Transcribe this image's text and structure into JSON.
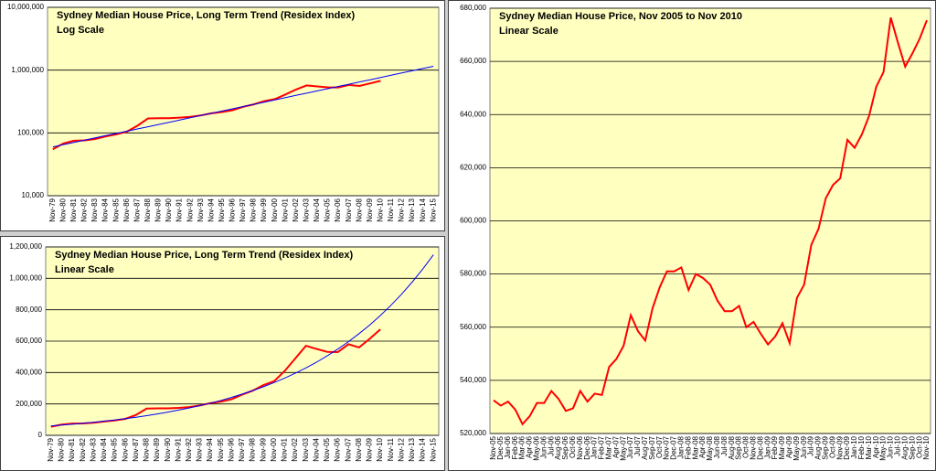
{
  "chart_data": [
    {
      "type": "line",
      "title": "Sydney Median House Price, Long Term Trend (Residex Index)",
      "subtitle": "Log Scale",
      "log_scale": true,
      "grid": true,
      "categories": [
        "Nov-79",
        "Nov-80",
        "Nov-81",
        "Nov-82",
        "Nov-83",
        "Nov-84",
        "Nov-85",
        "Nov-86",
        "Nov-87",
        "Nov-88",
        "Nov-89",
        "Nov-90",
        "Nov-91",
        "Nov-92",
        "Nov-93",
        "Nov-94",
        "Nov-95",
        "Nov-96",
        "Nov-97",
        "Nov-98",
        "Nov-99",
        "Nov-00",
        "Nov-01",
        "Nov-02",
        "Nov-03",
        "Nov-04",
        "Nov-05",
        "Nov-06",
        "Nov-07",
        "Nov-08",
        "Nov-09",
        "Nov-10",
        "Nov-11",
        "Nov-12",
        "Nov-13",
        "Nov-14",
        "Nov-15"
      ],
      "series": [
        {
          "color": "#ff0000",
          "values": [
            55000,
            68000,
            75000,
            76000,
            80000,
            88000,
            95000,
            105000,
            130000,
            170000,
            172000,
            172000,
            175000,
            180000,
            190000,
            205000,
            215000,
            230000,
            260000,
            285000,
            320000,
            345000,
            410000,
            490000,
            570000,
            550000,
            532000,
            530000,
            580000,
            560000,
            615000,
            675000,
            null,
            null,
            null,
            null,
            null
          ]
        },
        {
          "color": "#0000ff",
          "values": [
            60000,
            65100,
            70700,
            76700,
            83300,
            90400,
            98100,
            106500,
            115600,
            125500,
            136200,
            147900,
            160500,
            174200,
            189100,
            205300,
            222800,
            241900,
            262600,
            285000,
            309400,
            335900,
            364600,
            395800,
            429600,
            466300,
            506200,
            549500,
            596500,
            647500,
            702800,
            762900,
            828200,
            899000,
            975900,
            1059400,
            1150000
          ]
        }
      ],
      "ylim": [
        10000,
        10000000
      ],
      "yticks": [
        {
          "value": 10000,
          "label": "10,000"
        },
        {
          "value": 100000,
          "label": "100,000"
        },
        {
          "value": 1000000,
          "label": "1,000,000"
        },
        {
          "value": 10000000,
          "label": "10,000,000"
        }
      ]
    },
    {
      "type": "line",
      "title": "Sydney Median House Price, Long Term Trend (Residex Index)",
      "subtitle": "Linear Scale",
      "log_scale": false,
      "grid": true,
      "categories": [
        "Nov-79",
        "Nov-80",
        "Nov-81",
        "Nov-82",
        "Nov-83",
        "Nov-84",
        "Nov-85",
        "Nov-86",
        "Nov-87",
        "Nov-88",
        "Nov-89",
        "Nov-90",
        "Nov-91",
        "Nov-92",
        "Nov-93",
        "Nov-94",
        "Nov-95",
        "Nov-96",
        "Nov-97",
        "Nov-98",
        "Nov-99",
        "Nov-00",
        "Nov-01",
        "Nov-02",
        "Nov-03",
        "Nov-04",
        "Nov-05",
        "Nov-06",
        "Nov-07",
        "Nov-08",
        "Nov-09",
        "Nov-10",
        "Nov-11",
        "Nov-12",
        "Nov-13",
        "Nov-14",
        "Nov-15"
      ],
      "series": [
        {
          "color": "#ff0000",
          "values": [
            55000,
            68000,
            75000,
            76000,
            80000,
            88000,
            95000,
            105000,
            130000,
            170000,
            172000,
            172000,
            175000,
            180000,
            190000,
            205000,
            215000,
            230000,
            260000,
            285000,
            320000,
            345000,
            410000,
            490000,
            570000,
            550000,
            532000,
            530000,
            580000,
            560000,
            615000,
            675000,
            null,
            null,
            null,
            null,
            null
          ]
        },
        {
          "color": "#0000ff",
          "values": [
            60000,
            65100,
            70700,
            76700,
            83300,
            90400,
            98100,
            106500,
            115600,
            125500,
            136200,
            147900,
            160500,
            174200,
            189100,
            205300,
            222800,
            241900,
            262600,
            285000,
            309400,
            335900,
            364600,
            395800,
            429600,
            466300,
            506200,
            549500,
            596500,
            647500,
            702800,
            762900,
            828200,
            899000,
            975900,
            1059400,
            1150000
          ]
        }
      ],
      "ylim": [
        0,
        1200000
      ],
      "yticks": [
        0,
        {
          "value": 200000,
          "label": "200,000"
        },
        {
          "value": 400000,
          "label": "400,000"
        },
        {
          "value": 600000,
          "label": "600,000"
        },
        {
          "value": 800000,
          "label": "800,000"
        },
        {
          "value": 1000000,
          "label": "1,000,000"
        },
        {
          "value": 1200000,
          "label": "1,200,000"
        }
      ]
    },
    {
      "type": "line",
      "title": "Sydney Median House Price, Nov 2005 to Nov 2010",
      "subtitle": "Linear Scale",
      "log_scale": false,
      "grid": true,
      "categories": [
        "Nov-05",
        "Dec-05",
        "Jan-06",
        "Feb-06",
        "Mar-06",
        "Apr-06",
        "May-06",
        "Jun-06",
        "Jul-06",
        "Aug-06",
        "Sep-06",
        "Oct-06",
        "Nov-06",
        "Dec-06",
        "Jan-07",
        "Feb-07",
        "Mar-07",
        "Apr-07",
        "May-07",
        "Jun-07",
        "Jul-07",
        "Aug-07",
        "Sep-07",
        "Oct-07",
        "Nov-07",
        "Dec-07",
        "Jan-08",
        "Feb-08",
        "Mar-08",
        "Apr-08",
        "May-08",
        "Jun-08",
        "Jul-08",
        "Aug-08",
        "Sep-08",
        "Oct-08",
        "Nov-08",
        "Dec-08",
        "Jan-09",
        "Feb-09",
        "Mar-09",
        "Apr-09",
        "May-09",
        "Jun-09",
        "Jul-09",
        "Aug-09",
        "Sep-09",
        "Oct-09",
        "Nov-09",
        "Dec-09",
        "Jan-10",
        "Feb-10",
        "Mar-10",
        "Apr-10",
        "May-10",
        "Jun-10",
        "Jul-10",
        "Aug-10",
        "Sep-10",
        "Oct-10",
        "Nov-10"
      ],
      "series": [
        {
          "color": "#ff0000",
          "values": [
            532500,
            530500,
            532000,
            529000,
            523500,
            526500,
            531500,
            531500,
            536000,
            533000,
            528500,
            529500,
            536000,
            532000,
            535000,
            534500,
            545000,
            548000,
            553000,
            564500,
            558500,
            555000,
            567000,
            575000,
            581000,
            581000,
            582500,
            574000,
            580000,
            578500,
            576000,
            570000,
            566000,
            566000,
            568000,
            560000,
            562000,
            557500,
            553500,
            556500,
            561500,
            554000,
            571000,
            576000,
            591000,
            597000,
            608500,
            613500,
            616000,
            630500,
            627500,
            632500,
            639500,
            650500,
            656000,
            676500,
            667000,
            658000,
            663000,
            668500,
            675500
          ]
        }
      ],
      "ylim": [
        520000,
        680000
      ],
      "yticks": [
        {
          "value": 520000,
          "label": "520,000"
        },
        {
          "value": 540000,
          "label": "540,000"
        },
        {
          "value": 560000,
          "label": "560,000"
        },
        {
          "value": 580000,
          "label": "580,000"
        },
        {
          "value": 600000,
          "label": "600,000"
        },
        {
          "value": 620000,
          "label": "620,000"
        },
        {
          "value": 640000,
          "label": "640,000"
        },
        {
          "value": 660000,
          "label": "660,000"
        },
        {
          "value": 680000,
          "label": "680,000"
        }
      ]
    }
  ]
}
